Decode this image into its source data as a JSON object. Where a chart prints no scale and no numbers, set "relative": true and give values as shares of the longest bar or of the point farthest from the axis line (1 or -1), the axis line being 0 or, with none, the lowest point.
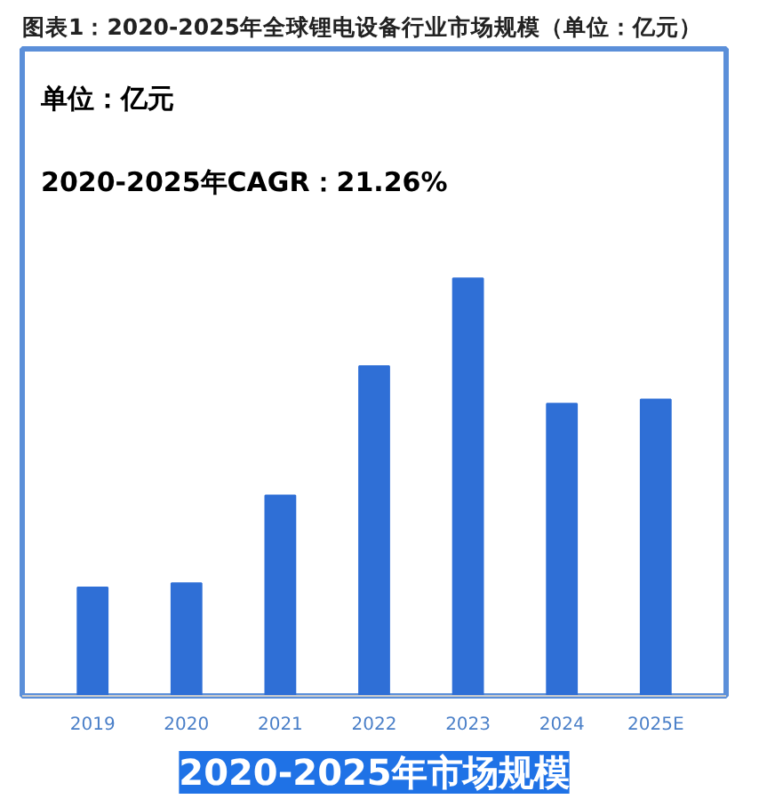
{
  "chart_data": {
    "type": "bar",
    "title": "图表1：2020-2025年全球锂电设备行业市场规模（单位：亿元）",
    "xlabel": "2020-2025年市场规模",
    "annotations": [
      "单位：亿元",
      "2020-2025年CAGR：21.26%"
    ],
    "categories": [
      "2019",
      "2020",
      "2021",
      "2022",
      "2023",
      "2024",
      "2025E"
    ],
    "values": [
      0.26,
      0.27,
      0.48,
      0.79,
      1,
      0.7,
      0.71
    ],
    "color": "#2f6fd6",
    "relative": true,
    "grid": false
  }
}
